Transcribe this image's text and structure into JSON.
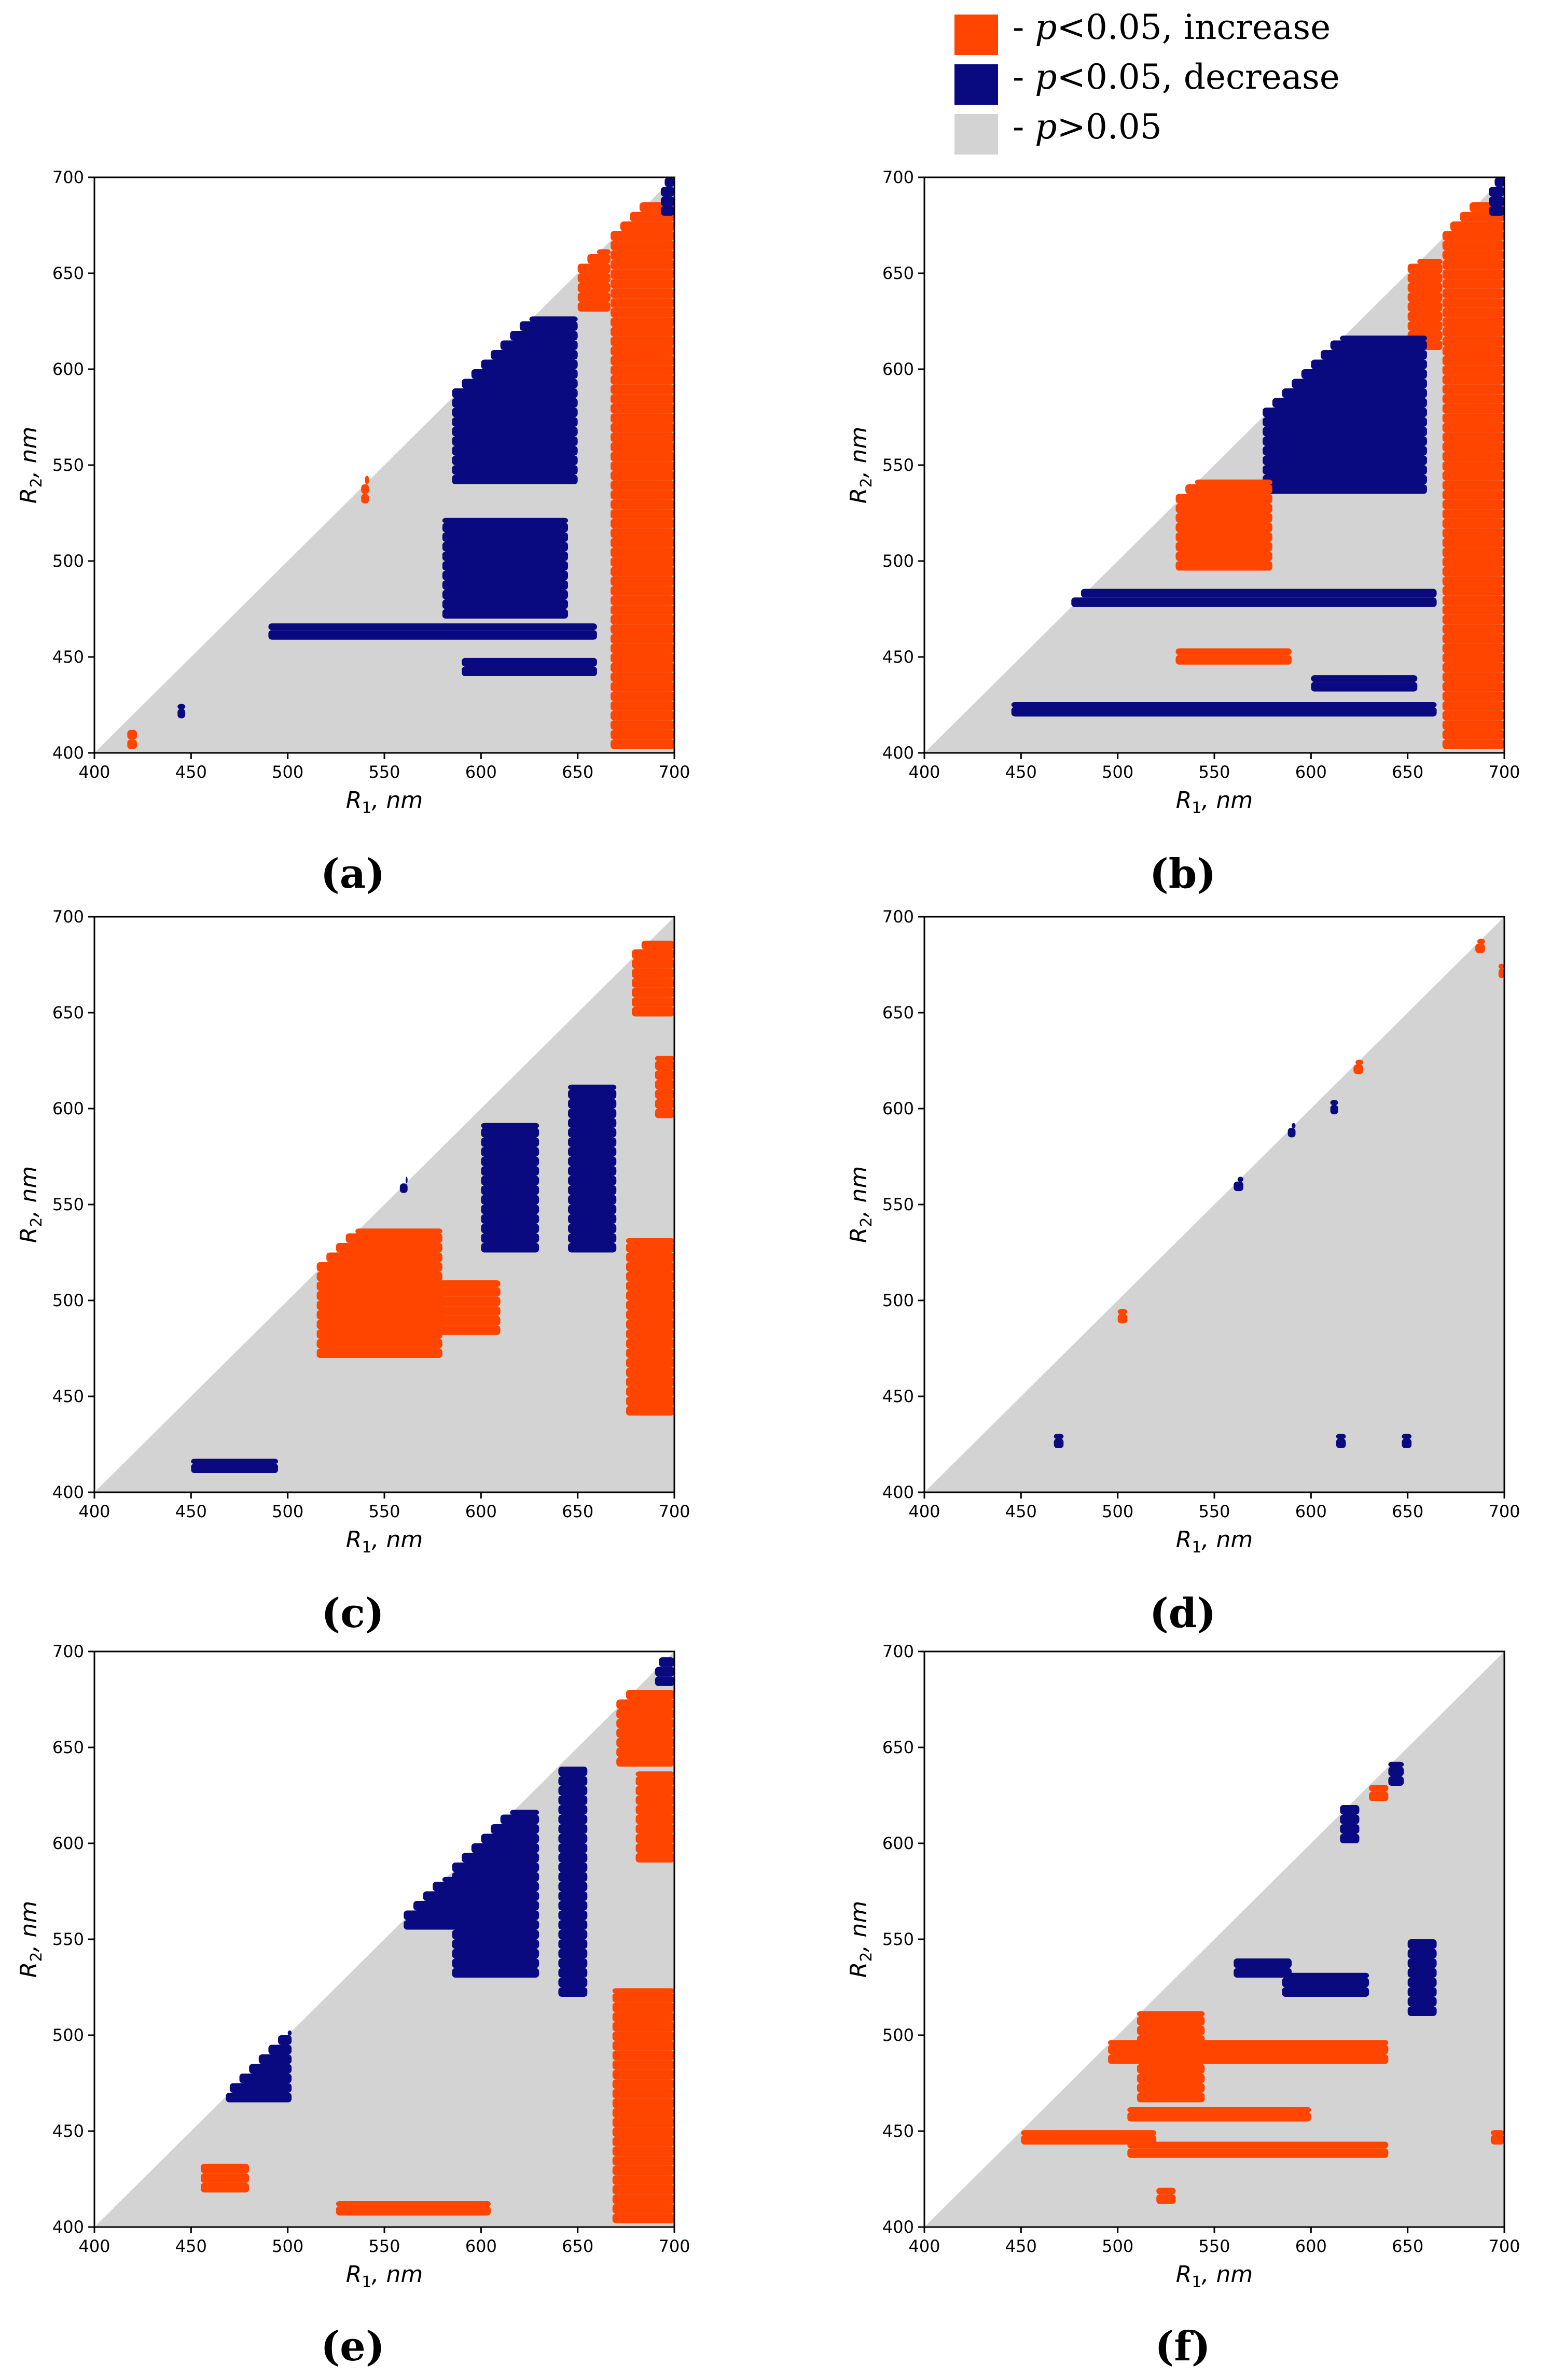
{
  "legend": {
    "items": [
      {
        "key": "increase",
        "color": "#ff4500",
        "prefix": "- ",
        "p": "p",
        "suffix": "<0.05, increase"
      },
      {
        "key": "decrease",
        "color": "#0a0a80",
        "prefix": "- ",
        "p": "p",
        "suffix": "<0.05, decrease"
      },
      {
        "key": "ns",
        "color": "#d3d3d3",
        "prefix": "- ",
        "p": "p",
        "suffix": ">0.05"
      }
    ]
  },
  "colors": {
    "increase": "#ff4500",
    "decrease": "#0a0a80",
    "ns": "#d3d3d3",
    "axis": "#000000"
  },
  "chart_data": [
    {
      "type": "heatmap",
      "panel": "(a)",
      "xlabel_main": "R",
      "xlabel_sub": "1",
      "xlabel_unit": ", nm",
      "ylabel_main": "R",
      "ylabel_sub": "2",
      "ylabel_unit": ", nm",
      "xlim": [
        400,
        700
      ],
      "ylim": [
        400,
        700
      ],
      "xticks": [
        400,
        450,
        500,
        550,
        600,
        650,
        700
      ],
      "yticks": [
        400,
        450,
        500,
        550,
        600,
        650,
        700
      ],
      "domain": "R2 <= R1 (lower-right triangle), grid step 5 nm",
      "regions": [
        {
          "class": "increase",
          "r1": [
            667,
            700
          ],
          "r2": [
            402,
            685
          ]
        },
        {
          "class": "increase",
          "r1": [
            650,
            667
          ],
          "r2": [
            630,
            660
          ]
        },
        {
          "class": "decrease",
          "r1": [
            693,
            700
          ],
          "r2": [
            680,
            700
          ]
        },
        {
          "class": "decrease",
          "r1": [
            585,
            650
          ],
          "r2": [
            540,
            625
          ]
        },
        {
          "class": "decrease",
          "r1": [
            580,
            645
          ],
          "r2": [
            470,
            520
          ]
        },
        {
          "class": "decrease",
          "r1": [
            490,
            660
          ],
          "r2": [
            459,
            465
          ]
        },
        {
          "class": "decrease",
          "r1": [
            590,
            660
          ],
          "r2": [
            440,
            447
          ]
        },
        {
          "class": "increase",
          "r1": [
            538,
            542
          ],
          "r2": [
            530,
            542
          ]
        },
        {
          "class": "increase",
          "r1": [
            417,
            422
          ],
          "r2": [
            402,
            410
          ]
        },
        {
          "class": "decrease",
          "r1": [
            443,
            447
          ],
          "r2": [
            418,
            423
          ]
        }
      ]
    },
    {
      "type": "heatmap",
      "panel": "(b)",
      "xlabel_main": "R",
      "xlabel_sub": "1",
      "xlabel_unit": ", nm",
      "ylabel_main": "R",
      "ylabel_sub": "2",
      "ylabel_unit": ", nm",
      "xlim": [
        400,
        700
      ],
      "ylim": [
        400,
        700
      ],
      "xticks": [
        400,
        450,
        500,
        550,
        600,
        650,
        700
      ],
      "yticks": [
        400,
        450,
        500,
        550,
        600,
        650,
        700
      ],
      "domain": "R2 <= R1 (lower-right triangle), grid step 5 nm",
      "regions": [
        {
          "class": "increase",
          "r1": [
            668,
            700
          ],
          "r2": [
            402,
            685
          ]
        },
        {
          "class": "increase",
          "r1": [
            650,
            668
          ],
          "r2": [
            610,
            655
          ]
        },
        {
          "class": "decrease",
          "r1": [
            692,
            700
          ],
          "r2": [
            680,
            700
          ]
        },
        {
          "class": "decrease",
          "r1": [
            575,
            660
          ],
          "r2": [
            535,
            615
          ]
        },
        {
          "class": "increase",
          "r1": [
            530,
            580
          ],
          "r2": [
            495,
            540
          ]
        },
        {
          "class": "decrease",
          "r1": [
            470,
            665
          ],
          "r2": [
            476,
            483
          ]
        },
        {
          "class": "increase",
          "r1": [
            530,
            590
          ],
          "r2": [
            446,
            452
          ]
        },
        {
          "class": "decrease",
          "r1": [
            445,
            665
          ],
          "r2": [
            419,
            424
          ]
        },
        {
          "class": "decrease",
          "r1": [
            600,
            655
          ],
          "r2": [
            432,
            438
          ]
        }
      ]
    },
    {
      "type": "heatmap",
      "panel": "(c)",
      "xlabel_main": "R",
      "xlabel_sub": "1",
      "xlabel_unit": ", nm",
      "ylabel_main": "R",
      "ylabel_sub": "2",
      "ylabel_unit": ", nm",
      "xlim": [
        400,
        700
      ],
      "ylim": [
        400,
        700
      ],
      "xticks": [
        400,
        450,
        500,
        550,
        600,
        650,
        700
      ],
      "yticks": [
        400,
        450,
        500,
        550,
        600,
        650,
        700
      ],
      "domain": "R2 <= R1 (lower-right triangle), grid step 5 nm",
      "regions": [
        {
          "class": "increase",
          "r1": [
            678,
            700
          ],
          "r2": [
            648,
            685
          ]
        },
        {
          "class": "increase",
          "r1": [
            690,
            700
          ],
          "r2": [
            595,
            625
          ]
        },
        {
          "class": "increase",
          "r1": [
            675,
            700
          ],
          "r2": [
            440,
            530
          ]
        },
        {
          "class": "decrease",
          "r1": [
            600,
            630
          ],
          "r2": [
            525,
            590
          ]
        },
        {
          "class": "decrease",
          "r1": [
            645,
            670
          ],
          "r2": [
            525,
            610
          ]
        },
        {
          "class": "increase",
          "r1": [
            515,
            580
          ],
          "r2": [
            470,
            535
          ]
        },
        {
          "class": "increase",
          "r1": [
            578,
            610
          ],
          "r2": [
            482,
            508
          ]
        },
        {
          "class": "decrease",
          "r1": [
            450,
            495
          ],
          "r2": [
            410,
            415
          ]
        },
        {
          "class": "decrease",
          "r1": [
            558,
            562
          ],
          "r2": [
            556,
            562
          ]
        }
      ]
    },
    {
      "type": "heatmap",
      "panel": "(d)",
      "xlabel_main": "R",
      "xlabel_sub": "1",
      "xlabel_unit": ", nm",
      "ylabel_main": "R",
      "ylabel_sub": "2",
      "ylabel_unit": ", nm",
      "xlim": [
        400,
        700
      ],
      "ylim": [
        400,
        700
      ],
      "xticks": [
        400,
        450,
        500,
        550,
        600,
        650,
        700
      ],
      "yticks": [
        400,
        450,
        500,
        550,
        600,
        650,
        700
      ],
      "domain": "R2 <= R1 (lower-right triangle), grid step 5 nm",
      "regions": [
        {
          "class": "increase",
          "r1": [
            685,
            690
          ],
          "r2": [
            681,
            686
          ]
        },
        {
          "class": "increase",
          "r1": [
            697,
            700
          ],
          "r2": [
            668,
            673
          ]
        },
        {
          "class": "increase",
          "r1": [
            622,
            627
          ],
          "r2": [
            618,
            623
          ]
        },
        {
          "class": "increase",
          "r1": [
            500,
            505
          ],
          "r2": [
            488,
            493
          ]
        },
        {
          "class": "decrease",
          "r1": [
            610,
            614
          ],
          "r2": [
            597,
            602
          ]
        },
        {
          "class": "decrease",
          "r1": [
            588,
            592
          ],
          "r2": [
            585,
            590
          ]
        },
        {
          "class": "decrease",
          "r1": [
            560,
            565
          ],
          "r2": [
            557,
            562
          ]
        },
        {
          "class": "decrease",
          "r1": [
            467,
            472
          ],
          "r2": [
            423,
            428
          ]
        },
        {
          "class": "decrease",
          "r1": [
            613,
            618
          ],
          "r2": [
            423,
            428
          ]
        },
        {
          "class": "decrease",
          "r1": [
            647,
            652
          ],
          "r2": [
            423,
            428
          ]
        }
      ]
    },
    {
      "type": "heatmap",
      "panel": "(e)",
      "xlabel_main": "R",
      "xlabel_sub": "1",
      "xlabel_unit": ", nm",
      "ylabel_main": "R",
      "ylabel_sub": "2",
      "ylabel_unit": ", nm",
      "xlim": [
        400,
        700
      ],
      "ylim": [
        400,
        700
      ],
      "xticks": [
        400,
        450,
        500,
        550,
        600,
        650,
        700
      ],
      "yticks": [
        400,
        450,
        500,
        550,
        600,
        650,
        700
      ],
      "domain": "R2 <= R1 (lower-right triangle), grid step 5 nm",
      "regions": [
        {
          "class": "decrease",
          "r1": [
            690,
            700
          ],
          "r2": [
            682,
            695
          ]
        },
        {
          "class": "increase",
          "r1": [
            670,
            700
          ],
          "r2": [
            640,
            678
          ]
        },
        {
          "class": "increase",
          "r1": [
            680,
            700
          ],
          "r2": [
            590,
            635
          ]
        },
        {
          "class": "increase",
          "r1": [
            668,
            700
          ],
          "r2": [
            402,
            522
          ]
        },
        {
          "class": "decrease",
          "r1": [
            585,
            630
          ],
          "r2": [
            530,
            615
          ]
        },
        {
          "class": "decrease",
          "r1": [
            560,
            590
          ],
          "r2": [
            555,
            580
          ]
        },
        {
          "class": "decrease",
          "r1": [
            640,
            655
          ],
          "r2": [
            520,
            638
          ]
        },
        {
          "class": "increase",
          "r1": [
            525,
            605
          ],
          "r2": [
            406,
            411
          ]
        },
        {
          "class": "decrease",
          "r1": [
            468,
            502
          ],
          "r2": [
            465,
            500
          ]
        },
        {
          "class": "increase",
          "r1": [
            455,
            480
          ],
          "r2": [
            418,
            432
          ]
        }
      ]
    },
    {
      "type": "heatmap",
      "panel": "(f)",
      "xlabel_main": "R",
      "xlabel_sub": "1",
      "xlabel_unit": ", nm",
      "ylabel_main": "R",
      "ylabel_sub": "2",
      "ylabel_unit": ", nm",
      "xlim": [
        400,
        700
      ],
      "ylim": [
        400,
        700
      ],
      "xticks": [
        400,
        450,
        500,
        550,
        600,
        650,
        700
      ],
      "yticks": [
        400,
        450,
        500,
        550,
        600,
        650,
        700
      ],
      "domain": "R2 <= R1 (lower-right triangle), grid step 5 nm",
      "regions": [
        {
          "class": "decrease",
          "r1": [
            640,
            648
          ],
          "r2": [
            630,
            640
          ]
        },
        {
          "class": "increase",
          "r1": [
            630,
            640
          ],
          "r2": [
            622,
            628
          ]
        },
        {
          "class": "decrease",
          "r1": [
            615,
            625
          ],
          "r2": [
            600,
            618
          ]
        },
        {
          "class": "decrease",
          "r1": [
            650,
            665
          ],
          "r2": [
            510,
            548
          ]
        },
        {
          "class": "decrease",
          "r1": [
            585,
            630
          ],
          "r2": [
            520,
            530
          ]
        },
        {
          "class": "decrease",
          "r1": [
            560,
            590
          ],
          "r2": [
            530,
            538
          ]
        },
        {
          "class": "increase",
          "r1": [
            495,
            640
          ],
          "r2": [
            485,
            495
          ]
        },
        {
          "class": "increase",
          "r1": [
            510,
            545
          ],
          "r2": [
            465,
            510
          ]
        },
        {
          "class": "increase",
          "r1": [
            505,
            640
          ],
          "r2": [
            436,
            442
          ]
        },
        {
          "class": "increase",
          "r1": [
            505,
            600
          ],
          "r2": [
            455,
            460
          ]
        },
        {
          "class": "increase",
          "r1": [
            450,
            520
          ],
          "r2": [
            443,
            448
          ]
        },
        {
          "class": "increase",
          "r1": [
            520,
            530
          ],
          "r2": [
            412,
            418
          ]
        },
        {
          "class": "increase",
          "r1": [
            693,
            700
          ],
          "r2": [
            443,
            448
          ]
        }
      ]
    }
  ]
}
